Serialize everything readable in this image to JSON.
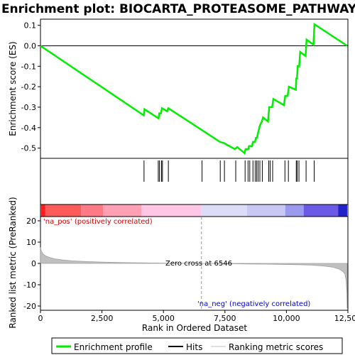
{
  "chart_data": {
    "type": "line",
    "title": "Enrichment plot: BIOCARTA_PROTEASOME_PATHWAY",
    "es_panel": {
      "ylabel": "Enrichment score (ES)",
      "ylim": [
        -0.55,
        0.13
      ],
      "yticks": [
        0.1,
        0.0,
        -0.1,
        -0.2,
        -0.3,
        -0.4,
        -0.5
      ],
      "ytick_labels": [
        "0.1",
        "0.0",
        "-0.1",
        "-0.2",
        "-0.3",
        "-0.4",
        "-0.5"
      ],
      "series": [
        {
          "name": "Enrichment profile",
          "color": "#00ee00",
          "x": [
            0,
            4200,
            4230,
            4800,
            4830,
            4900,
            4940,
            5150,
            5200,
            7300,
            7450,
            7900,
            8000,
            8300,
            8340,
            8450,
            8480,
            8600,
            8640,
            8720,
            8760,
            8800,
            8840,
            8880,
            8920,
            9000,
            9050,
            9250,
            9300,
            9420,
            9470,
            9900,
            9950,
            10050,
            10100,
            10380,
            10400,
            10430,
            10460,
            10520,
            10560,
            10780,
            10820,
            11100,
            11140,
            12470
          ],
          "y": [
            0.0,
            -0.34,
            -0.31,
            -0.355,
            -0.33,
            -0.33,
            -0.305,
            -0.32,
            -0.305,
            -0.47,
            -0.475,
            -0.505,
            -0.495,
            -0.525,
            -0.505,
            -0.505,
            -0.49,
            -0.49,
            -0.47,
            -0.47,
            -0.45,
            -0.45,
            -0.43,
            -0.41,
            -0.39,
            -0.37,
            -0.35,
            -0.37,
            -0.3,
            -0.3,
            -0.26,
            -0.29,
            -0.245,
            -0.245,
            -0.2,
            -0.215,
            -0.16,
            -0.16,
            -0.1,
            -0.1,
            -0.03,
            -0.05,
            0.03,
            0.005,
            0.105,
            0.0
          ]
        }
      ]
    },
    "hits": {
      "name": "Hits",
      "x": [
        4210,
        4790,
        4840,
        4920,
        4960,
        5200,
        6570,
        7310,
        7480,
        7940,
        8320,
        8440,
        8510,
        8640,
        8730,
        8790,
        8850,
        8920,
        9020,
        9280,
        9340,
        9440,
        9940,
        10080,
        10400,
        10440,
        10510,
        10800,
        11130
      ]
    },
    "color_bar": {
      "segments": [
        {
          "from": 0,
          "to": 200,
          "color": "#ff1e1e"
        },
        {
          "from": 200,
          "to": 1650,
          "color": "#ff5a5a"
        },
        {
          "from": 1650,
          "to": 2550,
          "color": "#ff7a85"
        },
        {
          "from": 2550,
          "to": 4100,
          "color": "#ffa0b5"
        },
        {
          "from": 4100,
          "to": 6546,
          "color": "#ffc6e6"
        },
        {
          "from": 6546,
          "to": 8400,
          "color": "#dcdcf8"
        },
        {
          "from": 8400,
          "to": 9950,
          "color": "#c8c8f4"
        },
        {
          "from": 9950,
          "to": 10700,
          "color": "#9a9aee"
        },
        {
          "from": 10700,
          "to": 12100,
          "color": "#6a5ae6"
        },
        {
          "from": 12100,
          "to": 12470,
          "color": "#2222cc"
        }
      ]
    },
    "metric_panel": {
      "ylabel": "Ranked list metric (PreRanked)",
      "ylim": [
        -22,
        22
      ],
      "yticks": [
        20,
        10,
        0,
        -10,
        -20
      ],
      "ytick_labels": [
        "20",
        "10",
        "0",
        "-10",
        "-20"
      ],
      "series": [
        {
          "name": "Ranking metric scores",
          "color": "#c0c0c0",
          "x": [
            0,
            30,
            80,
            150,
            250,
            400,
            600,
            900,
            1300,
            1800,
            2500,
            3500,
            4500,
            5500,
            6546,
            7500,
            8500,
            9500,
            10500,
            11000,
            11500,
            11900,
            12150,
            12300,
            12380,
            12430,
            12460,
            12470
          ],
          "y": [
            7.5,
            6.0,
            4.8,
            4.0,
            3.3,
            2.7,
            2.1,
            1.6,
            1.2,
            0.9,
            0.6,
            0.35,
            0.2,
            0.08,
            0.0,
            -0.1,
            -0.25,
            -0.4,
            -0.6,
            -0.8,
            -1.2,
            -1.8,
            -2.7,
            -3.8,
            -5.0,
            -8.0,
            -14.0,
            -21.0
          ]
        }
      ],
      "pos_label": "'na_pos' (positively correlated)",
      "neg_label": "'na_neg' (negatively correlated)",
      "zero_cross_label": "Zero cross at 6546",
      "zero_cross": 6546
    },
    "xaxis": {
      "xlabel": "Rank in Ordered Dataset",
      "xlim": [
        0,
        12500
      ],
      "xticks": [
        0,
        2500,
        5000,
        7500,
        10000,
        12500
      ],
      "xtick_labels": [
        "0",
        "2,500",
        "5,000",
        "7,500",
        "10,000",
        "12,500"
      ]
    },
    "legend": {
      "placement": "bottom",
      "items": [
        "Enrichment profile",
        "Hits",
        "Ranking metric scores"
      ],
      "colors": [
        "#00ee00",
        "#000000",
        "#c0c0c0"
      ]
    }
  }
}
